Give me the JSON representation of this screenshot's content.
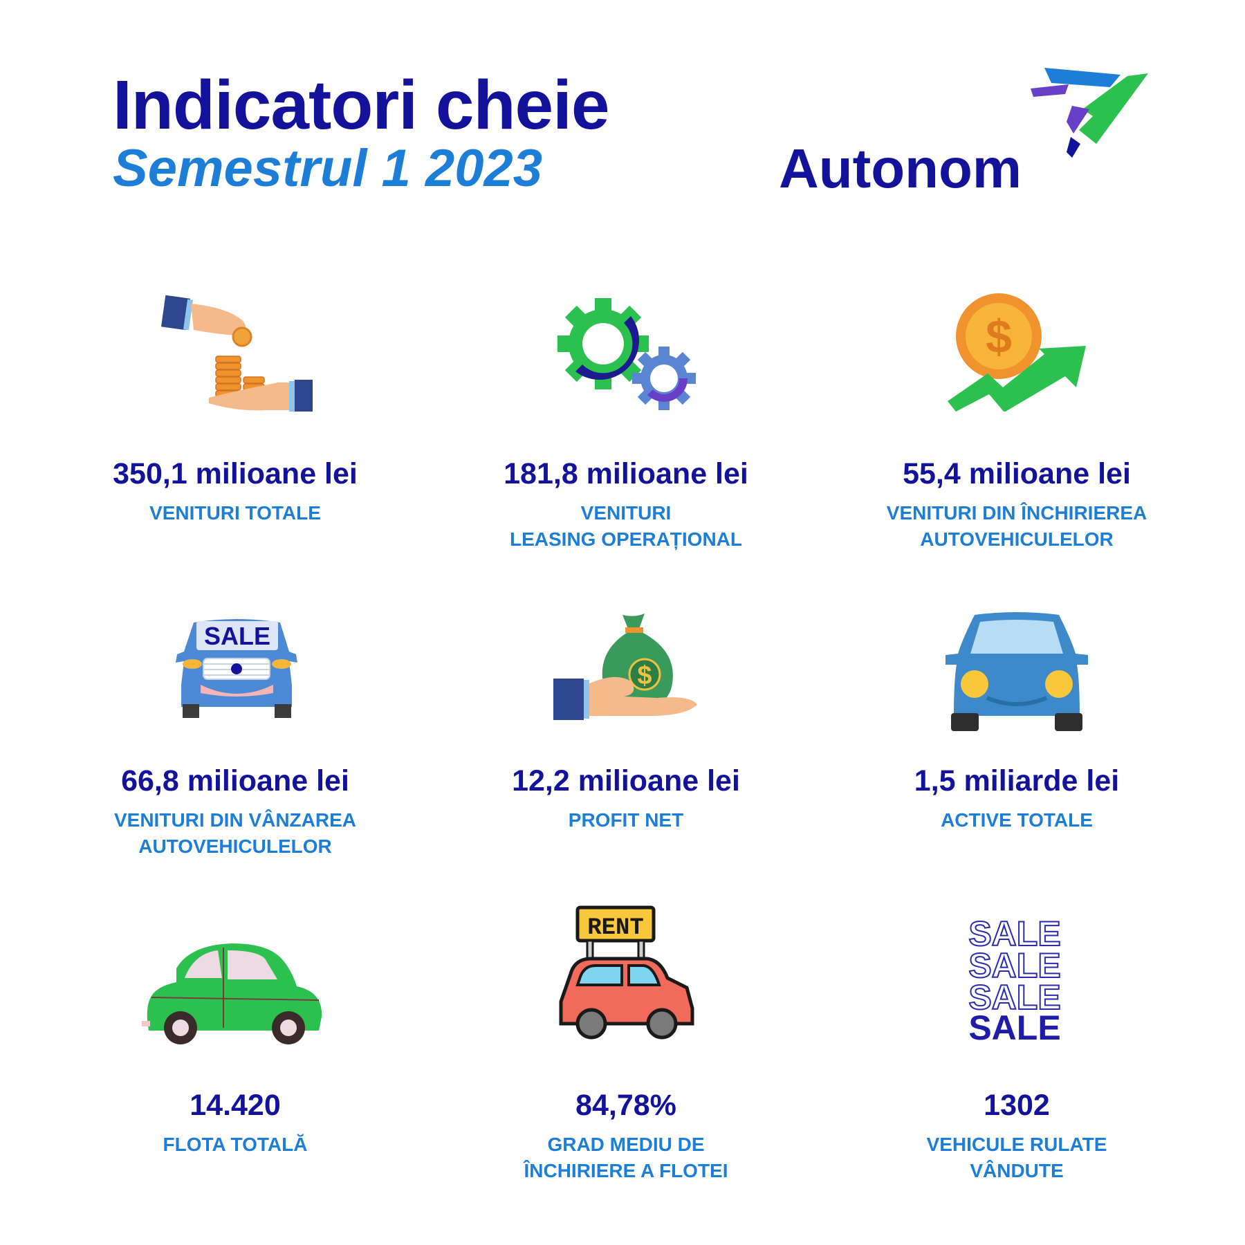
{
  "header": {
    "title": "Indicatori cheie",
    "subtitle": "Semestrul 1 2023",
    "brand": "Autonom"
  },
  "colors": {
    "navy": "#13129b",
    "blue": "#1d7ed8",
    "green": "#2cc04f",
    "purple": "#6a3fc7"
  },
  "indicators": [
    {
      "value": "350,1 milioane lei",
      "label1": "VENITURI TOTALE",
      "label2": "",
      "icon": "hand-coins-icon"
    },
    {
      "value": "181,8 milioane lei",
      "label1": "VENITURI",
      "label2": "LEASING OPERAȚIONAL",
      "icon": "gears-icon"
    },
    {
      "value": "55,4 milioane lei",
      "label1": "VENITURI DIN ÎNCHIRIEREA",
      "label2": "AUTOVEHICULELOR",
      "icon": "dollar-growth-icon"
    },
    {
      "value": "66,8 milioane lei",
      "label1": "VENITURI DIN VÂNZAREA",
      "label2": "AUTOVEHICULELOR",
      "icon": "sale-car-icon"
    },
    {
      "value": "12,2 milioane lei",
      "label1": "PROFIT NET",
      "label2": "",
      "icon": "money-bag-hand-icon"
    },
    {
      "value": "1,5 miliarde lei",
      "label1": "ACTIVE TOTALE",
      "label2": "",
      "icon": "blue-car-icon"
    },
    {
      "value": "14.420",
      "label1": "FLOTA TOTALĂ",
      "label2": "",
      "icon": "green-car-icon"
    },
    {
      "value": "84,78%",
      "label1": "GRAD MEDIU DE",
      "label2": "ÎNCHIRIERE A FLOTEI",
      "icon": "rent-car-icon"
    },
    {
      "value": "1302",
      "label1": "VEHICULE RULATE",
      "label2": "VÂNDUTE",
      "icon": "sale-text-icon"
    }
  ],
  "icon_text": {
    "sale_car": "SALE",
    "rent_sign": "RENT",
    "sale_lines": [
      "SALE",
      "SALE",
      "SALE",
      "SALE"
    ]
  }
}
